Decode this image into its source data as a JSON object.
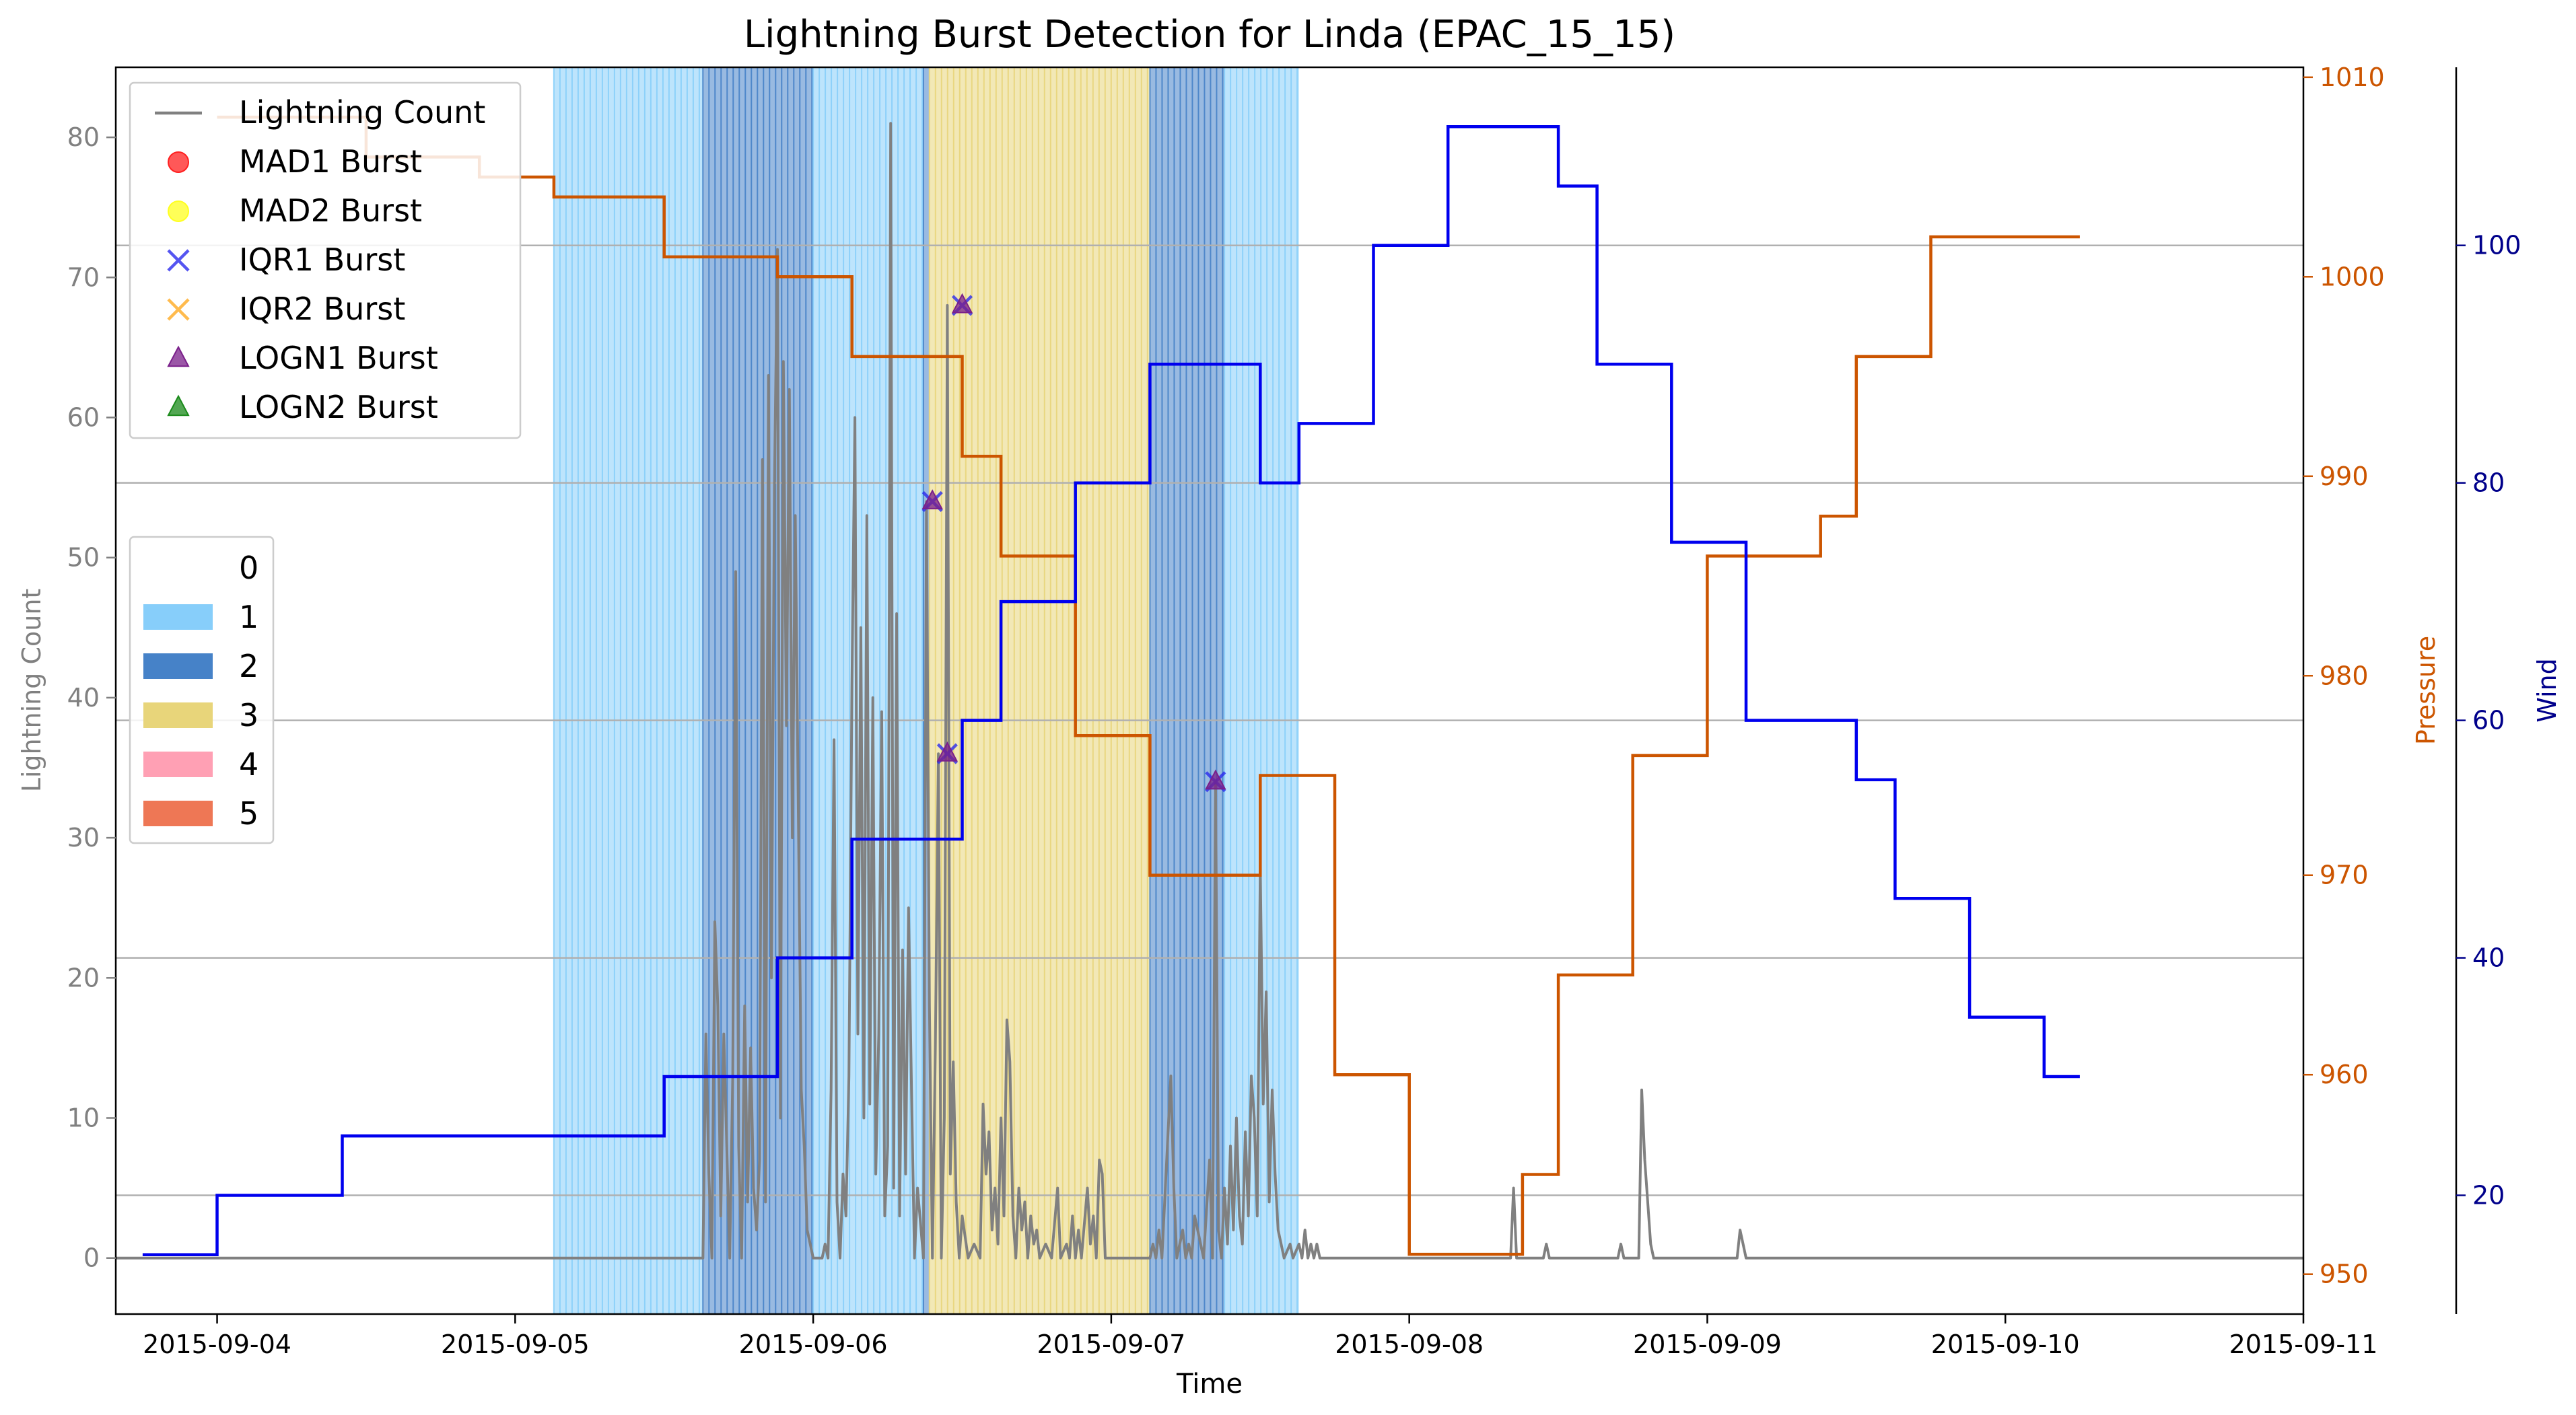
{
  "chart_data": {
    "type": "line",
    "title": "Lightning Burst Detection for Linda (EPAC_15_15)",
    "xlabel": "Time",
    "ylabel_left": "Lightning Count",
    "ylabel_pressure": "Pressure",
    "ylabel_wind": "Wind",
    "x_ticks": [
      "2015-09-04",
      "2015-09-05",
      "2015-09-06",
      "2015-09-07",
      "2015-09-08",
      "2015-09-09",
      "2015-09-10",
      "2015-09-11"
    ],
    "xlim_days": [
      -0.34,
      7.0
    ],
    "ylim_lightning": [
      -4,
      85
    ],
    "yticks_lightning": [
      "0",
      "10",
      "20",
      "30",
      "40",
      "50",
      "60",
      "70",
      "80"
    ],
    "ylim_pressure": [
      948,
      1010.5
    ],
    "yticks_pressure": [
      "950",
      "960",
      "970",
      "980",
      "990",
      "1000",
      "1010"
    ],
    "ylim_wind": [
      10,
      115
    ],
    "yticks_wind": [
      "20",
      "40",
      "60",
      "80",
      "100"
    ],
    "colors": {
      "lightning": "#808080",
      "pressure": "#cc5500",
      "wind": "#0000ee",
      "wind_axis": "#00008b",
      "cat1": "#87cefa",
      "cat2": "#4682c8",
      "cat3": "#e8d57a",
      "cat4": "#ffa0b4",
      "cat5": "#ee7755"
    },
    "legend_markers": [
      {
        "label": "Lightning Count",
        "kind": "line",
        "color": "#808080"
      },
      {
        "label": "MAD1 Burst",
        "kind": "circle",
        "color": "#ff2020"
      },
      {
        "label": "MAD2 Burst",
        "kind": "circle",
        "color": "#ffff20"
      },
      {
        "label": "IQR1 Burst",
        "kind": "x",
        "color": "#2a2aee"
      },
      {
        "label": "IQR2 Burst",
        "kind": "x",
        "color": "#ffaa22"
      },
      {
        "label": "LOGN1 Burst",
        "kind": "triangle",
        "color": "#7a1f8a"
      },
      {
        "label": "LOGN2 Burst",
        "kind": "triangle",
        "color": "#1a8a1a"
      }
    ],
    "legend_categories": [
      {
        "label": "0",
        "color": "#ffffff"
      },
      {
        "label": "1",
        "color": "#87cefa"
      },
      {
        "label": "2",
        "color": "#4682c8"
      },
      {
        "label": "3",
        "color": "#e8d57a"
      },
      {
        "label": "4",
        "color": "#ffa0b4"
      },
      {
        "label": "5",
        "color": "#ee7755"
      }
    ],
    "category_spans": [
      {
        "start": 1.13,
        "end": 1.63,
        "cat": 1
      },
      {
        "start": 1.63,
        "end": 2.0,
        "cat": 2
      },
      {
        "start": 2.0,
        "end": 2.37,
        "cat": 1
      },
      {
        "start": 2.37,
        "end": 2.39,
        "cat": 2
      },
      {
        "start": 2.39,
        "end": 3.13,
        "cat": 3
      },
      {
        "start": 3.13,
        "end": 3.38,
        "cat": 2
      },
      {
        "start": 3.38,
        "end": 3.63,
        "cat": 1
      }
    ],
    "wind_h_lines": [
      20,
      40,
      60,
      80,
      100
    ],
    "pressure_series": [
      [
        -0.5,
        1008
      ],
      [
        0.0,
        1008
      ],
      [
        0.0,
        1006
      ],
      [
        0.38,
        1006
      ],
      [
        0.38,
        1005
      ],
      [
        0.63,
        1005
      ],
      [
        0.63,
        1004
      ],
      [
        1.0,
        1004
      ],
      [
        1.0,
        1001
      ],
      [
        1.38,
        1001
      ],
      [
        1.38,
        1000
      ],
      [
        1.63,
        1000
      ],
      [
        1.63,
        996
      ],
      [
        2.0,
        996
      ],
      [
        2.0,
        991
      ],
      [
        2.13,
        991
      ],
      [
        2.13,
        986
      ],
      [
        2.38,
        986
      ],
      [
        2.38,
        977
      ],
      [
        2.63,
        977
      ],
      [
        2.63,
        970
      ],
      [
        3.0,
        970
      ],
      [
        3.0,
        975
      ],
      [
        3.25,
        975
      ],
      [
        3.25,
        960
      ],
      [
        3.5,
        960
      ],
      [
        3.5,
        951
      ],
      [
        3.88,
        951
      ],
      [
        3.88,
        955
      ],
      [
        4.0,
        955
      ],
      [
        4.0,
        965
      ],
      [
        4.25,
        965
      ],
      [
        4.25,
        976
      ],
      [
        4.5,
        976
      ],
      [
        4.5,
        986
      ],
      [
        4.88,
        986
      ],
      [
        4.88,
        988
      ],
      [
        5.0,
        988
      ],
      [
        5.0,
        996
      ],
      [
        5.25,
        996
      ],
      [
        5.25,
        1002
      ],
      [
        5.75,
        1002
      ]
    ],
    "wind_series": [
      [
        -0.75,
        15
      ],
      [
        -0.5,
        15
      ],
      [
        -0.5,
        20
      ],
      [
        -0.08,
        20
      ],
      [
        -0.08,
        25
      ],
      [
        1.0,
        25
      ],
      [
        1.0,
        30
      ],
      [
        1.38,
        30
      ],
      [
        1.38,
        40
      ],
      [
        1.63,
        40
      ],
      [
        1.63,
        50
      ],
      [
        2.0,
        50
      ],
      [
        2.0,
        60
      ],
      [
        2.13,
        60
      ],
      [
        2.13,
        70
      ],
      [
        2.38,
        70
      ],
      [
        2.38,
        80
      ],
      [
        2.63,
        80
      ],
      [
        2.63,
        90
      ],
      [
        3.0,
        90
      ],
      [
        3.0,
        80
      ],
      [
        3.13,
        80
      ],
      [
        3.13,
        85
      ],
      [
        3.38,
        85
      ],
      [
        3.38,
        100
      ],
      [
        3.63,
        100
      ],
      [
        3.63,
        110
      ],
      [
        4.0,
        110
      ],
      [
        4.0,
        105
      ],
      [
        4.13,
        105
      ],
      [
        4.13,
        90
      ],
      [
        4.38,
        90
      ],
      [
        4.38,
        75
      ],
      [
        4.63,
        75
      ],
      [
        4.63,
        60
      ],
      [
        5.0,
        60
      ],
      [
        5.0,
        55
      ],
      [
        5.13,
        55
      ],
      [
        5.13,
        45
      ],
      [
        5.38,
        45
      ],
      [
        5.38,
        35
      ],
      [
        5.63,
        35
      ],
      [
        5.63,
        30
      ],
      [
        5.75,
        30
      ]
    ],
    "lightning_series": [
      [
        -0.34,
        0
      ],
      [
        1.63,
        0
      ],
      [
        1.64,
        16
      ],
      [
        1.65,
        6
      ],
      [
        1.66,
        0
      ],
      [
        1.67,
        24
      ],
      [
        1.68,
        18
      ],
      [
        1.69,
        3
      ],
      [
        1.7,
        16
      ],
      [
        1.71,
        8
      ],
      [
        1.72,
        0
      ],
      [
        1.73,
        13
      ],
      [
        1.74,
        49
      ],
      [
        1.75,
        8
      ],
      [
        1.76,
        0
      ],
      [
        1.77,
        18
      ],
      [
        1.78,
        4
      ],
      [
        1.79,
        15
      ],
      [
        1.8,
        5
      ],
      [
        1.81,
        2
      ],
      [
        1.82,
        7
      ],
      [
        1.83,
        57
      ],
      [
        1.84,
        4
      ],
      [
        1.85,
        63
      ],
      [
        1.86,
        20
      ],
      [
        1.87,
        55
      ],
      [
        1.88,
        72
      ],
      [
        1.89,
        10
      ],
      [
        1.9,
        64
      ],
      [
        1.91,
        38
      ],
      [
        1.92,
        62
      ],
      [
        1.93,
        30
      ],
      [
        1.94,
        53
      ],
      [
        1.95,
        32
      ],
      [
        1.96,
        12
      ],
      [
        1.97,
        8
      ],
      [
        1.98,
        2
      ],
      [
        1.99,
        1
      ],
      [
        2.0,
        0
      ],
      [
        2.03,
        0
      ],
      [
        2.04,
        1
      ],
      [
        2.05,
        0
      ],
      [
        2.06,
        12
      ],
      [
        2.07,
        37
      ],
      [
        2.08,
        4
      ],
      [
        2.09,
        0
      ],
      [
        2.1,
        6
      ],
      [
        2.11,
        3
      ],
      [
        2.12,
        13
      ],
      [
        2.13,
        41
      ],
      [
        2.14,
        60
      ],
      [
        2.15,
        16
      ],
      [
        2.16,
        45
      ],
      [
        2.17,
        10
      ],
      [
        2.18,
        53
      ],
      [
        2.19,
        11
      ],
      [
        2.2,
        40
      ],
      [
        2.21,
        6
      ],
      [
        2.22,
        16
      ],
      [
        2.23,
        39
      ],
      [
        2.24,
        3
      ],
      [
        2.25,
        8
      ],
      [
        2.26,
        81
      ],
      [
        2.27,
        5
      ],
      [
        2.28,
        46
      ],
      [
        2.29,
        3
      ],
      [
        2.3,
        22
      ],
      [
        2.31,
        6
      ],
      [
        2.32,
        25
      ],
      [
        2.33,
        12
      ],
      [
        2.34,
        0
      ],
      [
        2.35,
        5
      ],
      [
        2.37,
        0
      ],
      [
        2.38,
        54
      ],
      [
        2.39,
        18
      ],
      [
        2.4,
        0
      ],
      [
        2.41,
        15
      ],
      [
        2.42,
        36
      ],
      [
        2.43,
        0
      ],
      [
        2.44,
        10
      ],
      [
        2.45,
        68
      ],
      [
        2.46,
        6
      ],
      [
        2.47,
        14
      ],
      [
        2.48,
        4
      ],
      [
        2.49,
        0
      ],
      [
        2.5,
        3
      ],
      [
        2.52,
        0
      ],
      [
        2.54,
        1
      ],
      [
        2.56,
        0
      ],
      [
        2.57,
        11
      ],
      [
        2.58,
        6
      ],
      [
        2.59,
        9
      ],
      [
        2.6,
        2
      ],
      [
        2.61,
        5
      ],
      [
        2.62,
        1
      ],
      [
        2.63,
        10
      ],
      [
        2.64,
        3
      ],
      [
        2.65,
        17
      ],
      [
        2.66,
        14
      ],
      [
        2.67,
        3
      ],
      [
        2.68,
        0
      ],
      [
        2.69,
        5
      ],
      [
        2.7,
        2
      ],
      [
        2.71,
        4
      ],
      [
        2.72,
        0
      ],
      [
        2.73,
        3
      ],
      [
        2.74,
        1
      ],
      [
        2.75,
        2
      ],
      [
        2.76,
        0
      ],
      [
        2.78,
        1
      ],
      [
        2.8,
        0
      ],
      [
        2.82,
        5
      ],
      [
        2.83,
        0
      ],
      [
        2.85,
        1
      ],
      [
        2.86,
        0
      ],
      [
        2.87,
        3
      ],
      [
        2.88,
        0
      ],
      [
        2.89,
        2
      ],
      [
        2.9,
        0
      ],
      [
        2.92,
        5
      ],
      [
        2.93,
        1
      ],
      [
        2.94,
        3
      ],
      [
        2.95,
        0
      ],
      [
        2.96,
        7
      ],
      [
        2.97,
        6
      ],
      [
        2.98,
        0
      ],
      [
        3.13,
        0
      ],
      [
        3.14,
        1
      ],
      [
        3.15,
        0
      ],
      [
        3.16,
        2
      ],
      [
        3.17,
        0
      ],
      [
        3.2,
        13
      ],
      [
        3.21,
        5
      ],
      [
        3.22,
        0
      ],
      [
        3.24,
        2
      ],
      [
        3.25,
        0
      ],
      [
        3.26,
        1
      ],
      [
        3.27,
        0
      ],
      [
        3.28,
        3
      ],
      [
        3.29,
        2
      ],
      [
        3.3,
        1
      ],
      [
        3.31,
        0
      ],
      [
        3.33,
        7
      ],
      [
        3.34,
        0
      ],
      [
        3.35,
        34
      ],
      [
        3.36,
        2
      ],
      [
        3.37,
        0
      ],
      [
        3.38,
        5
      ],
      [
        3.39,
        1
      ],
      [
        3.4,
        8
      ],
      [
        3.41,
        2
      ],
      [
        3.42,
        10
      ],
      [
        3.43,
        3
      ],
      [
        3.44,
        1
      ],
      [
        3.45,
        9
      ],
      [
        3.46,
        3
      ],
      [
        3.47,
        13
      ],
      [
        3.48,
        10
      ],
      [
        3.49,
        3
      ],
      [
        3.5,
        28
      ],
      [
        3.51,
        11
      ],
      [
        3.52,
        19
      ],
      [
        3.53,
        4
      ],
      [
        3.54,
        12
      ],
      [
        3.55,
        6
      ],
      [
        3.56,
        2
      ],
      [
        3.57,
        1
      ],
      [
        3.58,
        0
      ],
      [
        3.6,
        1
      ],
      [
        3.61,
        0
      ],
      [
        3.63,
        1
      ],
      [
        3.64,
        0
      ],
      [
        3.65,
        2
      ],
      [
        3.66,
        0
      ],
      [
        3.67,
        1
      ],
      [
        3.68,
        0
      ],
      [
        3.69,
        1
      ],
      [
        3.7,
        0
      ],
      [
        4.34,
        0
      ],
      [
        4.35,
        5
      ],
      [
        4.36,
        0
      ],
      [
        4.45,
        0
      ],
      [
        4.46,
        1
      ],
      [
        4.47,
        0
      ],
      [
        4.7,
        0
      ],
      [
        4.71,
        1
      ],
      [
        4.72,
        0
      ],
      [
        4.77,
        0
      ],
      [
        4.78,
        12
      ],
      [
        4.79,
        7
      ],
      [
        4.8,
        4
      ],
      [
        4.81,
        1
      ],
      [
        4.82,
        0
      ],
      [
        5.1,
        0
      ],
      [
        5.11,
        2
      ],
      [
        5.12,
        1
      ],
      [
        5.13,
        0
      ],
      [
        7.0,
        0
      ]
    ],
    "bursts": [
      {
        "label": "IQR1 Burst",
        "x": 2.4,
        "y": 54
      },
      {
        "label": "IQR1 Burst",
        "x": 2.45,
        "y": 36
      },
      {
        "label": "IQR1 Burst",
        "x": 2.5,
        "y": 68
      },
      {
        "label": "IQR1 Burst",
        "x": 3.35,
        "y": 34
      },
      {
        "label": "LOGN1 Burst",
        "x": 2.4,
        "y": 54
      },
      {
        "label": "LOGN1 Burst",
        "x": 2.45,
        "y": 36
      },
      {
        "label": "LOGN1 Burst",
        "x": 2.5,
        "y": 68
      },
      {
        "label": "LOGN1 Burst",
        "x": 3.35,
        "y": 34
      }
    ]
  }
}
